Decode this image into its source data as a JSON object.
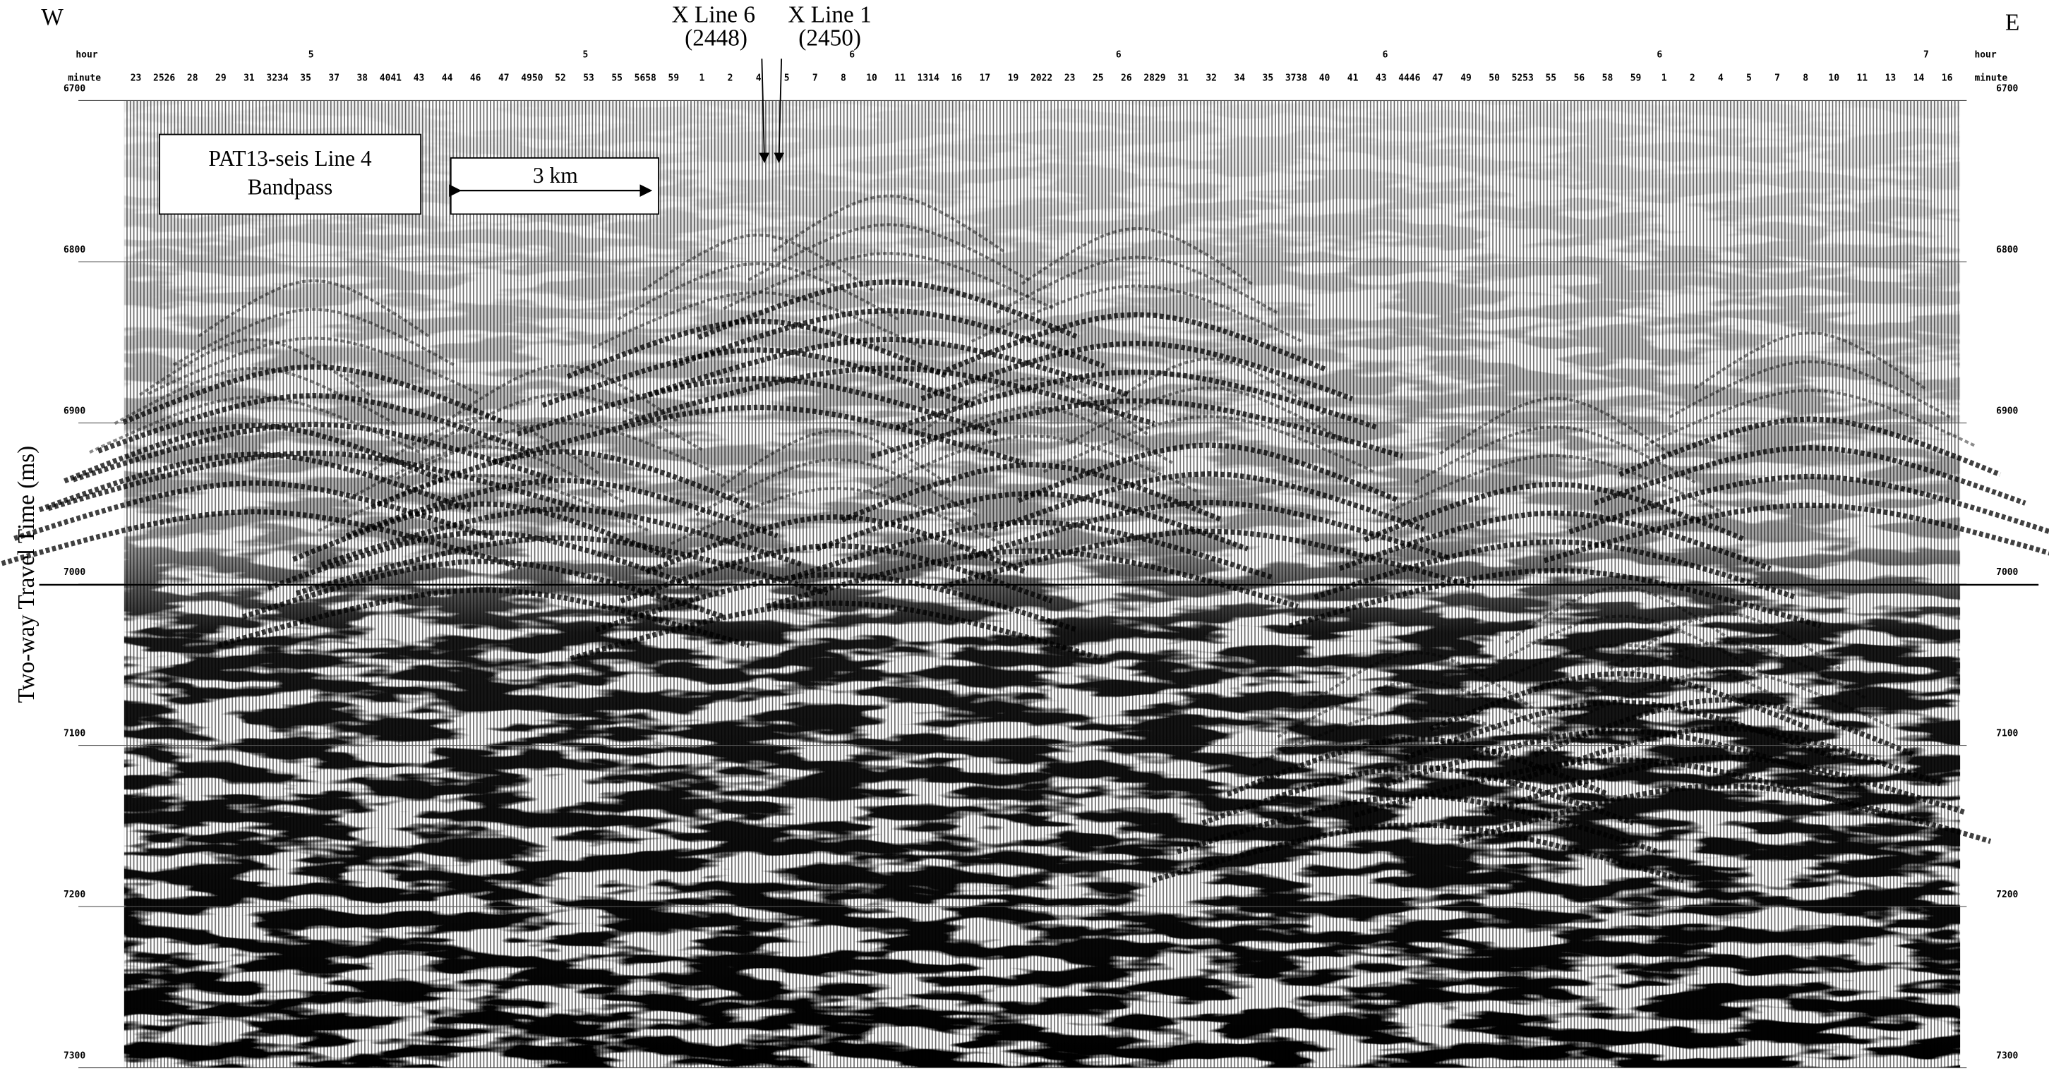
{
  "compass": {
    "west": "W",
    "east": "E"
  },
  "crosslines": [
    {
      "label": "X Line 6",
      "trace": "(2448)"
    },
    {
      "label": "X Line 1",
      "trace": "(2450)"
    }
  ],
  "hour_row": {
    "left": "hour",
    "right": "hour",
    "labels": [
      "5",
      "5",
      "6",
      "6",
      "6",
      "6",
      "7"
    ]
  },
  "minute_row": {
    "left": "minute",
    "right": "minute",
    "labels": [
      "23",
      "2526",
      "28",
      "29",
      "31",
      "3234",
      "35",
      "37",
      "38",
      "4041",
      "43",
      "44",
      "46",
      "47",
      "4950",
      "52",
      "53",
      "55",
      "5658",
      "59",
      "1",
      "2",
      "4",
      "5",
      "7",
      "8",
      "10",
      "11",
      "1314",
      "16",
      "17",
      "19",
      "2022",
      "23",
      "25",
      "26",
      "2829",
      "31",
      "32",
      "34",
      "35",
      "3738",
      "40",
      "41",
      "43",
      "4446",
      "47",
      "49",
      "50",
      "5253",
      "55",
      "56",
      "58",
      "59",
      "1",
      "2",
      "4",
      "5",
      "7",
      "8",
      "10",
      "11",
      "13",
      "14",
      "16"
    ]
  },
  "y_axis": {
    "label": "Two-way Travel Time (ms)",
    "ticks": [
      6700,
      6800,
      6900,
      7000,
      7100,
      7200,
      7300
    ]
  },
  "legend": {
    "title": "PAT13-seis Line 4",
    "subtitle": "Bandpass"
  },
  "scale_bar": "3 km"
}
